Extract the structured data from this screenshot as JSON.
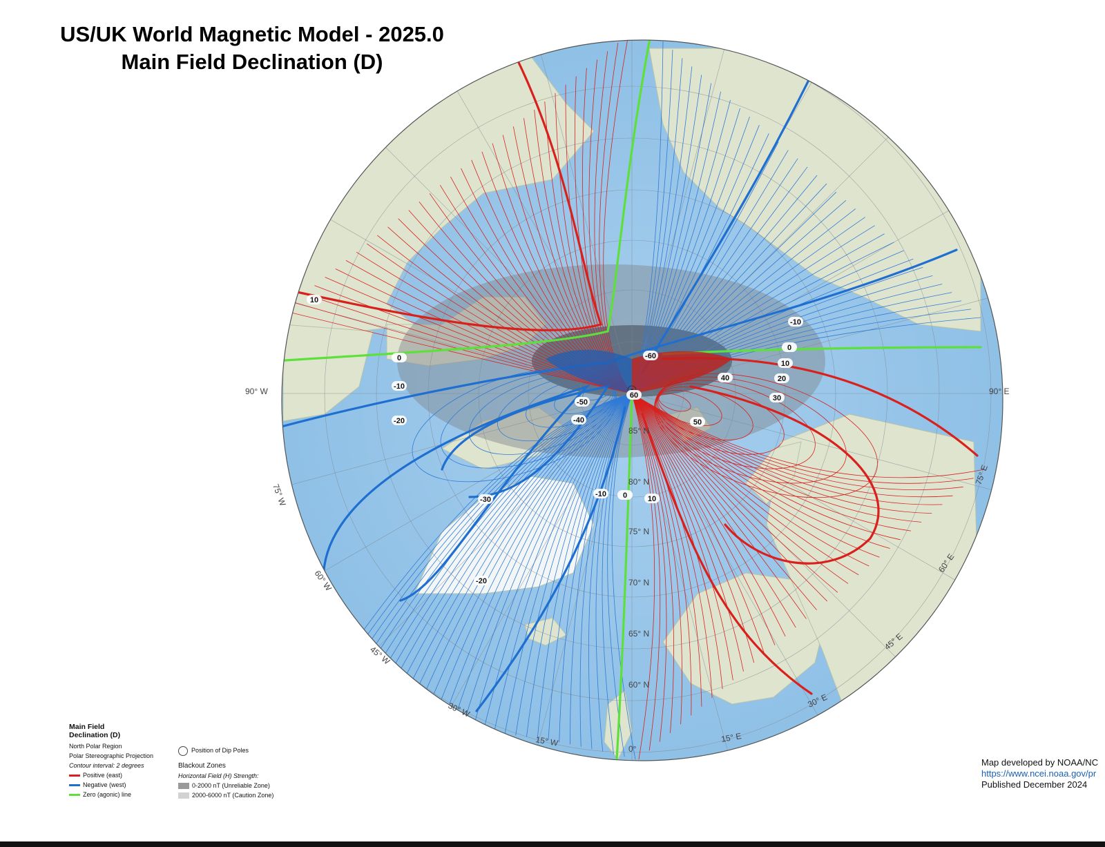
{
  "title": {
    "line1": "US/UK World Magnetic Model - 2025.0",
    "line2": "Main Field Declination (D)"
  },
  "map": {
    "projection": "Polar Stereographic Projection",
    "region": "North Polar Region",
    "colors": {
      "positive": "#d8201c",
      "negative": "#1f6fd0",
      "zero": "#5ee03a",
      "ocean": "#9ec9ea",
      "land": "#dfe4cf",
      "unreliable_zone": "#3f4550",
      "caution_zone": "#8a8f99"
    },
    "longitude_labels": [
      "90° W",
      "90° E",
      "75° W",
      "75° E",
      "60° W",
      "60° E",
      "45° W",
      "45° E",
      "30° W",
      "30° E",
      "15° W",
      "15° E",
      "0°"
    ],
    "latitude_labels": [
      "85° N",
      "80° N",
      "75° N",
      "70° N",
      "65° N",
      "60° N"
    ],
    "contour_labels": [
      "10",
      "0",
      "-10",
      "-20",
      "-60",
      "60",
      "-50",
      "-40",
      "-30",
      "-10",
      "0",
      "10",
      "-20",
      "-10",
      "0",
      "10",
      "20",
      "30",
      "40",
      "50"
    ]
  },
  "legend": {
    "heading_line1": "Main Field",
    "heading_line2": "Declination (D)",
    "region": "North Polar Region",
    "projection": "Polar Stereographic Projection",
    "interval": "Contour interval: 2 degrees",
    "positive": "Positive (east)",
    "negative": "Negative (west)",
    "zero": "Zero (agonic) line",
    "dip_poles": "Position of Dip Poles",
    "blackout_title": "Blackout Zones",
    "blackout_subtitle": "Horizontal Field (H) Strength:",
    "zone1": "0-2000 nT (Unreliable Zone)",
    "zone2": "2000-6000 nT (Caution Zone)"
  },
  "credits": {
    "line1": "Map developed by NOAA/NC",
    "line2": "https://www.ncei.noaa.gov/pr",
    "line3": "Published December 2024"
  }
}
